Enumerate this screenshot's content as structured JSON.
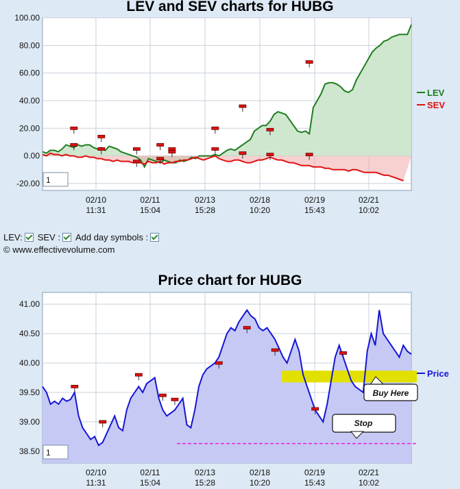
{
  "charts": [
    {
      "title": "LEV and SEV charts for HUBG",
      "zoom_box": "1",
      "legend": [
        {
          "name": "LEV",
          "color": "#1e7d1e"
        },
        {
          "name": "SEV",
          "color": "#e01010"
        }
      ]
    },
    {
      "title": "Price chart for HUBG",
      "zoom_box": "1",
      "legend": [
        {
          "name": "Price",
          "color": "#1515d4"
        }
      ],
      "annotations": {
        "buy": "Buy Here",
        "stop": "Stop"
      }
    }
  ],
  "controls": {
    "lev_label": "LEV:",
    "sev_label": "SEV :",
    "day_symbols_label": "Add day symbols :"
  },
  "copyright": "© www.effectivevolume.com",
  "chart_data": [
    {
      "type": "area",
      "title": "LEV and SEV charts for HUBG",
      "ylim": [
        -25,
        100
      ],
      "yticks": [
        "100.00",
        "80.00",
        "60.00",
        "40.00",
        "20.00",
        "0.00",
        "-20.00"
      ],
      "x_ticks": [
        {
          "date": "02/10",
          "time": "11:31"
        },
        {
          "date": "02/11",
          "time": "15:04"
        },
        {
          "date": "02/13",
          "time": "15:28"
        },
        {
          "date": "02/18",
          "time": "10:20"
        },
        {
          "date": "02/19",
          "time": "15:43"
        },
        {
          "date": "02/21",
          "time": "10:02"
        }
      ],
      "legend_position": "right",
      "grid": true,
      "series": [
        {
          "name": "LEV",
          "color": "#1e7d1e",
          "values": [
            3,
            2,
            4,
            4,
            3,
            5,
            8,
            7,
            6,
            8,
            7,
            8,
            8,
            6,
            5,
            6,
            4,
            7,
            6,
            5,
            3,
            2,
            1,
            0,
            -1,
            -3,
            -8,
            -2,
            -3,
            -4,
            -5,
            -3,
            -4,
            -5,
            -5,
            -3,
            -4,
            -3,
            -1,
            -2,
            0,
            0,
            0,
            0,
            1,
            0,
            2,
            4,
            5,
            4,
            6,
            8,
            10,
            12,
            18,
            20,
            22,
            22,
            25,
            30,
            32,
            31,
            30,
            26,
            22,
            18,
            17,
            18,
            16,
            35,
            40,
            45,
            52,
            53,
            53,
            52,
            50,
            47,
            46,
            48,
            55,
            60,
            65,
            70,
            75,
            78,
            80,
            83,
            84,
            86,
            87,
            88,
            88,
            88,
            95
          ]
        },
        {
          "name": "SEV",
          "color": "#e01010",
          "values": [
            1,
            0,
            2,
            1,
            1,
            0,
            1,
            0,
            0,
            -1,
            -1,
            0,
            -1,
            -1,
            -2,
            -2,
            -3,
            -3,
            -4,
            -3,
            -4,
            -4,
            -4,
            -5,
            -5,
            -5,
            -6,
            -4,
            -5,
            -5,
            -4,
            -6,
            -5,
            -5,
            -4,
            -4,
            -3,
            -3,
            -2,
            -1,
            -2,
            -3,
            -2,
            -1,
            0,
            -2,
            -3,
            -4,
            -4,
            -3,
            -3,
            -4,
            -5,
            -5,
            -4,
            -3,
            -3,
            -2,
            -1,
            -2,
            -3,
            -3,
            -4,
            -5,
            -5,
            -6,
            -7,
            -7,
            -7,
            -8,
            -8,
            -8,
            -9,
            -9,
            -10,
            -10,
            -10,
            -10,
            -11,
            -10,
            -10,
            -11,
            -12,
            -12,
            -12,
            -12,
            -13,
            -14,
            -14,
            -15,
            -16,
            -17,
            -18
          ]
        }
      ],
      "day_markers": [
        {
          "i": 8,
          "top": 20
        },
        {
          "i": 8,
          "top": 8
        },
        {
          "i": 15,
          "top": 14
        },
        {
          "i": 15,
          "top": 5
        },
        {
          "i": 24,
          "top": 5
        },
        {
          "i": 24,
          "top": -4
        },
        {
          "i": 30,
          "top": 8
        },
        {
          "i": 30,
          "top": -2
        },
        {
          "i": 33,
          "top": 5
        },
        {
          "i": 33,
          "top": 3
        },
        {
          "i": 44,
          "top": 20
        },
        {
          "i": 44,
          "top": 5
        },
        {
          "i": 51,
          "top": 36
        },
        {
          "i": 51,
          "top": 2
        },
        {
          "i": 58,
          "top": 19
        },
        {
          "i": 58,
          "top": 1
        },
        {
          "i": 68,
          "top": 68
        },
        {
          "i": 68,
          "top": 1
        }
      ]
    },
    {
      "type": "area",
      "title": "Price chart for HUBG",
      "ylim": [
        38.3,
        41.2
      ],
      "yticks": [
        "41.00",
        "40.50",
        "40.00",
        "39.50",
        "39.00",
        "38.50"
      ],
      "x_ticks": [
        {
          "date": "02/10",
          "time": "11:31"
        },
        {
          "date": "02/11",
          "time": "15:04"
        },
        {
          "date": "02/13",
          "time": "15:28"
        },
        {
          "date": "02/18",
          "time": "10:20"
        },
        {
          "date": "02/19",
          "time": "15:43"
        },
        {
          "date": "02/21",
          "time": "10:02"
        }
      ],
      "legend_position": "right",
      "grid": true,
      "series": [
        {
          "name": "Price",
          "color": "#1515d4",
          "values": [
            39.6,
            39.5,
            39.3,
            39.35,
            39.3,
            39.4,
            39.35,
            39.38,
            39.5,
            39.1,
            38.9,
            38.8,
            38.7,
            38.75,
            38.6,
            38.65,
            38.8,
            38.95,
            39.1,
            38.9,
            38.85,
            39.2,
            39.4,
            39.5,
            39.6,
            39.5,
            39.65,
            39.7,
            39.75,
            39.4,
            39.2,
            39.1,
            39.15,
            39.2,
            39.3,
            39.4,
            38.95,
            38.9,
            39.2,
            39.6,
            39.8,
            39.9,
            39.95,
            40.0,
            40.1,
            40.3,
            40.5,
            40.6,
            40.55,
            40.7,
            40.8,
            40.9,
            40.8,
            40.75,
            40.6,
            40.55,
            40.6,
            40.5,
            40.4,
            40.25,
            40.1,
            40.0,
            40.2,
            40.4,
            40.2,
            39.8,
            39.6,
            39.4,
            39.2,
            39.1,
            39.0,
            39.3,
            39.7,
            40.1,
            40.3,
            40.1,
            39.9,
            39.7,
            39.6,
            39.55,
            39.5,
            40.2,
            40.5,
            40.3,
            40.9,
            40.5,
            40.4,
            40.3,
            40.2,
            40.1,
            40.3,
            40.2,
            40.15
          ]
        }
      ],
      "day_markers": [
        {
          "i": 8,
          "top": 39.6
        },
        {
          "i": 15,
          "top": 39.0
        },
        {
          "i": 24,
          "top": 39.8
        },
        {
          "i": 30,
          "top": 39.45
        },
        {
          "i": 33,
          "top": 39.38
        },
        {
          "i": 44,
          "top": 40.0
        },
        {
          "i": 51,
          "top": 40.6
        },
        {
          "i": 58,
          "top": 40.22
        },
        {
          "i": 68,
          "top": 39.22
        },
        {
          "i": 75,
          "top": 40.17
        }
      ],
      "buy_zone": [
        39.67,
        39.87
      ],
      "stop_level": 38.63
    }
  ]
}
